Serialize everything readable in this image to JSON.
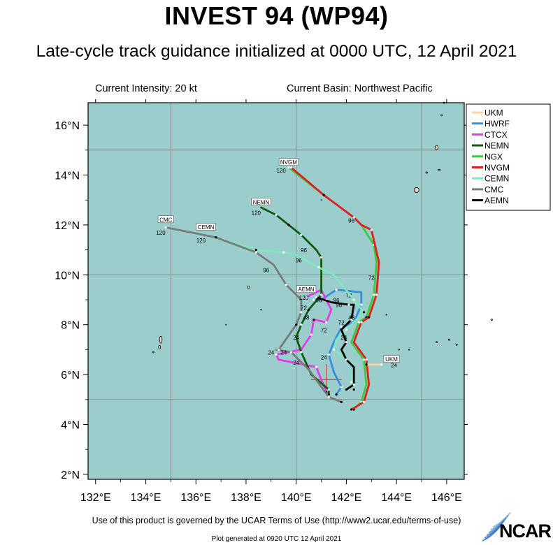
{
  "title": "INVEST 94 (WP94)",
  "subtitle": "Late-cycle track guidance initialized at 0000 UTC, 12 April 2021",
  "intensity": "Current Intensity: 20 kt",
  "basin": "Current Basin: Northwest Pacific",
  "terms": "Use of this product is governed by the UCAR Terms of Use (http://www2.ucar.edu/terms-of-use)",
  "generated": "Plot generated at 0920 UTC   12 April 2021",
  "brand": "NCAR",
  "colors": {
    "ocean": "#9bcdcd",
    "land": "#e8d7ba",
    "grid": "#7f7f7f"
  },
  "axes": {
    "lon_ticks": [
      "132°E",
      "134°E",
      "136°E",
      "138°E",
      "140°E",
      "142°E",
      "144°E",
      "146°E"
    ],
    "lat_ticks": [
      "2°N",
      "4°N",
      "6°N",
      "8°N",
      "10°N",
      "12°N",
      "14°N",
      "16°N"
    ]
  },
  "legend": [
    {
      "name": "UKM",
      "color": "#f5d5a0"
    },
    {
      "name": "HWRF",
      "color": "#3b8de0"
    },
    {
      "name": "CTCX",
      "color": "#e83ae8"
    },
    {
      "name": "NEMN",
      "color": "#0e5a0e"
    },
    {
      "name": "NGX",
      "color": "#3ec83e"
    },
    {
      "name": "NVGM",
      "color": "#e01f1f"
    },
    {
      "name": "CEMN",
      "color": "#7fe8c0"
    },
    {
      "name": "CMC",
      "color": "#7a7a7a"
    },
    {
      "name": "AEMN",
      "color": "#000000"
    }
  ],
  "current_position": {
    "lon": 141.2,
    "lat": 5.8
  },
  "chart_data": {
    "type": "line",
    "title": "INVEST 94 (WP94)",
    "xlim": [
      131.7,
      146.7
    ],
    "ylim": [
      1.8,
      16.9
    ],
    "series": [
      {
        "name": "NGX",
        "color": "#3ec83e",
        "points": [
          [
            142.3,
            4.6
          ],
          [
            142.6,
            4.9
          ],
          [
            142.8,
            5.6
          ],
          [
            142.7,
            6.6
          ],
          [
            142.2,
            7.3
          ],
          [
            142.5,
            8.1
          ],
          [
            142.8,
            8.3
          ],
          [
            143.1,
            9.2
          ],
          [
            143.2,
            10.5
          ],
          [
            143.1,
            11.2
          ],
          [
            142.6,
            12.0
          ],
          [
            142.3,
            12.3
          ],
          [
            141.1,
            13.2
          ],
          [
            139.7,
            14.3
          ]
        ],
        "labels": [
          {
            "lon": 142.2,
            "lat": 8.2,
            "text": "48"
          },
          {
            "lon": 143.0,
            "lat": 9.8,
            "text": "72"
          },
          {
            "lon": 142.2,
            "lat": 12.1,
            "text": "96"
          },
          {
            "lon": 139.4,
            "lat": 14.1,
            "text": "120"
          }
        ]
      },
      {
        "name": "NVGM",
        "color": "#e01f1f",
        "points": [
          [
            142.2,
            4.6
          ],
          [
            142.7,
            4.9
          ],
          [
            142.9,
            5.6
          ],
          [
            142.8,
            6.6
          ],
          [
            142.3,
            7.3
          ],
          [
            142.6,
            8.1
          ],
          [
            142.9,
            8.3
          ],
          [
            143.2,
            9.2
          ],
          [
            143.3,
            10.5
          ],
          [
            143.0,
            11.8
          ],
          [
            142.6,
            12.0
          ],
          [
            142.3,
            12.3
          ],
          [
            141.1,
            13.2
          ],
          [
            139.8,
            14.3
          ]
        ],
        "labels": []
      },
      {
        "name": "HWRF",
        "color": "#3b8de0",
        "points": [
          [
            141.6,
            5.2
          ],
          [
            141.8,
            5.5
          ],
          [
            141.5,
            6.1
          ],
          [
            141.3,
            6.8
          ],
          [
            141.5,
            7.3
          ],
          [
            141.8,
            7.9
          ],
          [
            142.3,
            8.1
          ],
          [
            142.6,
            8.8
          ],
          [
            142.6,
            9.3
          ],
          [
            141.6,
            9.4
          ],
          [
            141.0,
            9.0
          ],
          [
            140.7,
            9.0
          ]
        ],
        "labels": [
          {
            "lon": 142.1,
            "lat": 9.1,
            "text": "72"
          }
        ]
      },
      {
        "name": "CTCX",
        "color": "#e83ae8",
        "points": [
          [
            141.2,
            5.3
          ],
          [
            140.8,
            6.3
          ],
          [
            139.3,
            6.6
          ],
          [
            139.2,
            6.8
          ],
          [
            140.2,
            7.0
          ],
          [
            140.6,
            7.6
          ],
          [
            140.7,
            8.2
          ],
          [
            141.2,
            8.1
          ],
          [
            141.4,
            8.6
          ],
          [
            141.2,
            9.0
          ],
          [
            141.0,
            9.4
          ],
          [
            140.4,
            9.1
          ]
        ],
        "labels": [
          {
            "lon": 141.1,
            "lat": 7.7,
            "text": "72"
          },
          {
            "lon": 141.7,
            "lat": 8.7,
            "text": "96"
          }
        ]
      },
      {
        "name": "NEMN",
        "color": "#0e5a0e",
        "points": [
          [
            141.3,
            5.2
          ],
          [
            141.3,
            5.4
          ],
          [
            140.6,
            6.0
          ],
          [
            140.2,
            6.9
          ],
          [
            140.0,
            7.5
          ],
          [
            140.2,
            8.0
          ],
          [
            140.5,
            8.6
          ],
          [
            141.0,
            9.2
          ],
          [
            141.0,
            10.3
          ],
          [
            141.0,
            10.7
          ],
          [
            140.8,
            11.0
          ],
          [
            140.2,
            11.6
          ],
          [
            139.7,
            12.0
          ],
          [
            139.2,
            12.4
          ],
          [
            138.6,
            12.7
          ]
        ],
        "labels": [
          {
            "lon": 140.0,
            "lat": 7.4,
            "text": "24"
          },
          {
            "lon": 140.4,
            "lat": 8.2,
            "text": "48"
          },
          {
            "lon": 140.3,
            "lat": 10.9,
            "text": "96"
          },
          {
            "lon": 138.4,
            "lat": 12.4,
            "text": "120"
          }
        ]
      },
      {
        "name": "CEMN",
        "color": "#7fe8c0",
        "points": [
          [
            142.3,
            5.4
          ],
          [
            142.2,
            5.7
          ],
          [
            142.3,
            6.4
          ],
          [
            141.5,
            7.0
          ],
          [
            141.6,
            7.4
          ],
          [
            142.0,
            7.8
          ],
          [
            142.7,
            8.5
          ],
          [
            142.3,
            9.0
          ],
          [
            141.5,
            10.0
          ],
          [
            140.9,
            10.3
          ],
          [
            140.0,
            10.8
          ],
          [
            139.5,
            10.9
          ],
          [
            138.4,
            11.0
          ],
          [
            137.1,
            11.4
          ],
          [
            136.4,
            11.6
          ]
        ],
        "labels": [
          {
            "lon": 140.1,
            "lat": 10.5,
            "text": "96"
          },
          {
            "lon": 136.2,
            "lat": 11.3,
            "text": "120"
          }
        ]
      },
      {
        "name": "CMC",
        "color": "#7a7a7a",
        "points": [
          [
            141.8,
            4.9
          ],
          [
            141.3,
            5.1
          ],
          [
            140.5,
            6.2
          ],
          [
            139.8,
            6.9
          ],
          [
            139.2,
            7.0
          ],
          [
            139.3,
            7.0
          ],
          [
            140.0,
            8.0
          ],
          [
            140.2,
            8.5
          ],
          [
            140.2,
            9.0
          ],
          [
            139.6,
            9.6
          ],
          [
            139.1,
            10.4
          ],
          [
            138.4,
            10.9
          ],
          [
            136.8,
            11.5
          ],
          [
            134.8,
            11.9
          ]
        ],
        "labels": [
          {
            "lon": 139.0,
            "lat": 6.8,
            "text": "24"
          },
          {
            "lon": 138.8,
            "lat": 10.1,
            "text": "96"
          },
          {
            "lon": 134.6,
            "lat": 11.6,
            "text": "120"
          }
        ]
      },
      {
        "name": "AEMN",
        "color": "#000000",
        "points": [
          [
            142.0,
            5.4
          ],
          [
            142.3,
            5.6
          ],
          [
            142.3,
            6.3
          ],
          [
            142.0,
            6.6
          ],
          [
            141.8,
            7.0
          ],
          [
            142.0,
            7.3
          ],
          [
            141.8,
            7.8
          ],
          [
            142.2,
            8.2
          ],
          [
            142.3,
            8.8
          ],
          [
            142.1,
            8.8
          ],
          [
            141.4,
            8.9
          ],
          [
            140.8,
            9.1
          ]
        ],
        "labels": [
          {
            "lon": 141.8,
            "lat": 8.0,
            "text": "72"
          }
        ]
      },
      {
        "name": "UKM",
        "color": "#f5d5a0",
        "points": [
          [
            142.8,
            6.4
          ],
          [
            143.4,
            6.4
          ]
        ],
        "labels": []
      }
    ],
    "model_tags": [
      {
        "name": "NVGM",
        "lon": 139.7,
        "lat": 14.5
      },
      {
        "name": "NEMN",
        "lon": 138.6,
        "lat": 12.9
      },
      {
        "name": "CMC",
        "lon": 134.8,
        "lat": 12.2
      },
      {
        "name": "CEMN",
        "lon": 136.4,
        "lat": 11.9
      },
      {
        "name": "AEMN",
        "lon": 140.4,
        "lat": 9.4
      },
      {
        "name": "UKM",
        "lon": 143.8,
        "lat": 6.6
      }
    ],
    "extra_labels": [
      {
        "lon": 140.0,
        "lat": 6.4,
        "text": "24"
      },
      {
        "lon": 139.5,
        "lat": 6.8,
        "text": "24"
      },
      {
        "lon": 141.1,
        "lat": 6.6,
        "text": "24"
      },
      {
        "lon": 143.9,
        "lat": 6.3,
        "text": "24"
      },
      {
        "lon": 141.9,
        "lat": 7.4,
        "text": "24"
      },
      {
        "lon": 140.3,
        "lat": 8.6,
        "text": "72"
      },
      {
        "lon": 141.6,
        "lat": 8.9,
        "text": "96"
      },
      {
        "lon": 140.9,
        "lat": 8.9,
        "text": "96"
      },
      {
        "lon": 140.3,
        "lat": 9.0,
        "text": "120"
      }
    ]
  }
}
